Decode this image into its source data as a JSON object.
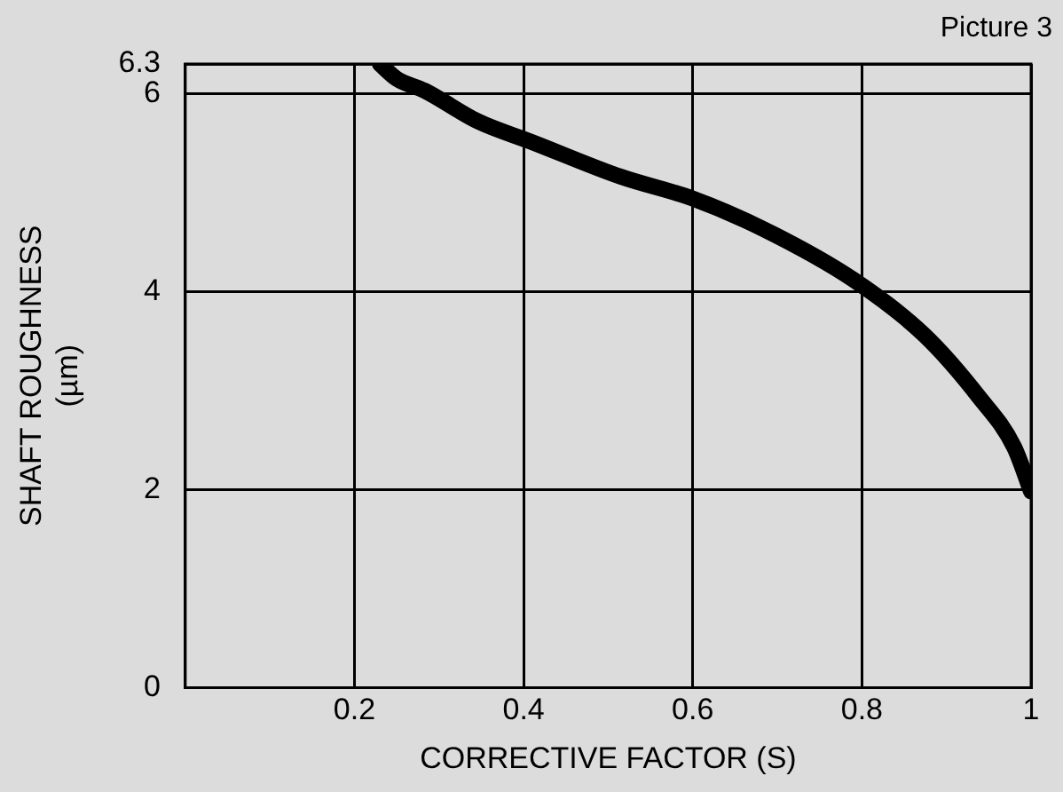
{
  "chart_data": {
    "type": "line",
    "xlabel": "CORRECTIVE FACTOR (S)",
    "ylabel": "SHAFT ROUGHNESS\n(µm)",
    "annotations": [
      "Picture 3"
    ],
    "x": [
      0.23,
      0.25,
      0.283,
      0.346,
      0.41,
      0.515,
      0.6,
      0.684,
      0.79,
      0.874,
      0.938,
      0.98,
      1.0
    ],
    "series": [
      {
        "color": "#000000",
        "values": [
          6.3,
          6.15,
          6.03,
          5.72,
          5.51,
          5.16,
          4.94,
          4.63,
          4.12,
          3.56,
          2.94,
          2.43,
          1.98
        ]
      }
    ],
    "xlim": [
      0,
      1
    ],
    "xticks": [
      0.2,
      0.4,
      0.6,
      0.8,
      1
    ],
    "ylim": [
      0,
      6.3
    ],
    "yticks": [
      0,
      2,
      4,
      6,
      6.3
    ],
    "grid": true,
    "legend": false,
    "marker": "none",
    "line_style": "solid"
  }
}
